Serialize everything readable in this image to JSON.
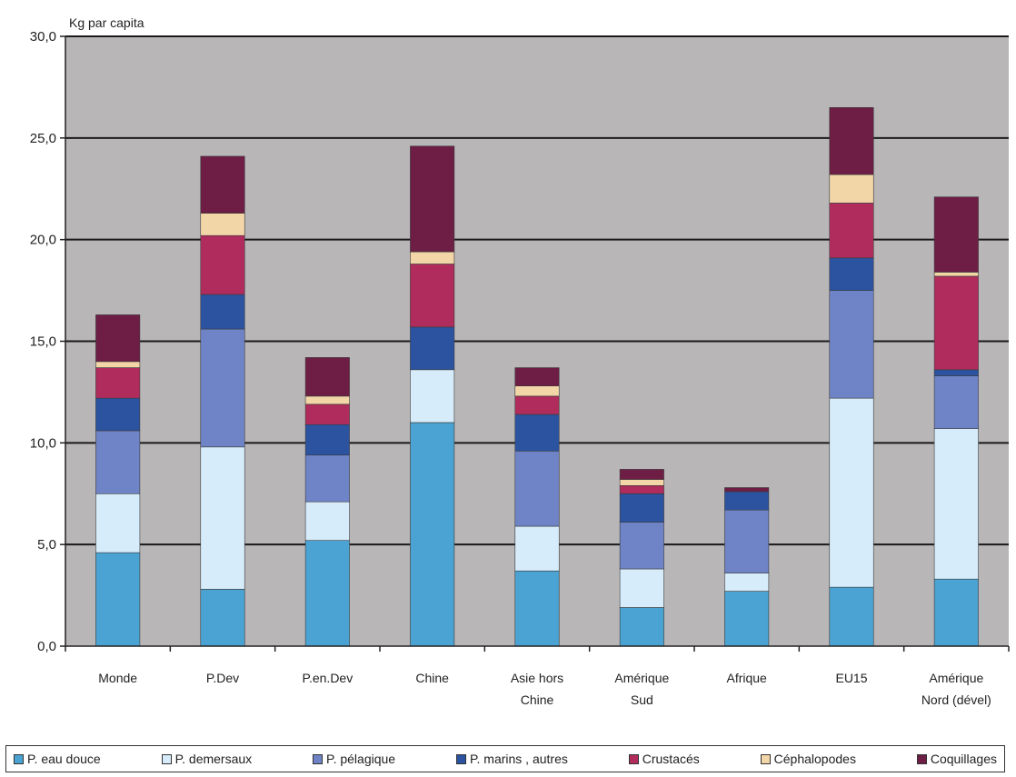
{
  "chart_data": {
    "type": "bar",
    "stacked": true,
    "ylabel": "Kg par capita",
    "ylim": [
      0,
      30
    ],
    "yticks": [
      "0,0",
      "5,0",
      "10,0",
      "15,0",
      "20,0",
      "25,0",
      "30,0"
    ],
    "grid": true,
    "legend_position": "bottom",
    "categories": [
      [
        "Monde"
      ],
      [
        "P.Dev"
      ],
      [
        "P.en.Dev"
      ],
      [
        "Chine"
      ],
      [
        "Asie hors",
        "Chine"
      ],
      [
        "Amérique",
        "Sud"
      ],
      [
        "Afrique"
      ],
      [
        "EU15"
      ],
      [
        "Amérique",
        "Nord (dével)"
      ]
    ],
    "series": [
      {
        "name": "P. eau douce",
        "color": "#4aa3d2",
        "values": [
          4.6,
          2.8,
          5.2,
          11.0,
          3.7,
          1.9,
          2.7,
          2.9,
          3.3
        ]
      },
      {
        "name": "P. demersaux",
        "color": "#d6ecfa",
        "values": [
          2.9,
          7.0,
          1.9,
          2.6,
          2.2,
          1.9,
          0.9,
          9.3,
          7.4
        ]
      },
      {
        "name": "P. pélagique",
        "color": "#6f84c6",
        "values": [
          3.1,
          5.8,
          2.3,
          0.0,
          3.7,
          2.3,
          3.1,
          5.3,
          2.6
        ]
      },
      {
        "name": "P. marins , autres",
        "color": "#2c53a0",
        "values": [
          1.6,
          1.7,
          1.5,
          2.1,
          1.8,
          1.4,
          0.9,
          1.6,
          0.3
        ]
      },
      {
        "name": "Crustacés",
        "color": "#b02c5c",
        "values": [
          1.5,
          2.9,
          1.0,
          3.1,
          0.9,
          0.4,
          0.0,
          2.7,
          4.6
        ]
      },
      {
        "name": "Céphalopodes",
        "color": "#f3d6a8",
        "values": [
          0.3,
          1.1,
          0.4,
          0.6,
          0.5,
          0.3,
          0.0,
          1.4,
          0.2
        ]
      },
      {
        "name": "Coquillages",
        "color": "#6e1e45",
        "values": [
          2.3,
          2.8,
          1.9,
          5.2,
          0.9,
          0.5,
          0.2,
          3.3,
          3.7
        ]
      }
    ]
  },
  "colors": {
    "plot_background": "#b9b6b8",
    "gridline": "#1a1a1a"
  }
}
